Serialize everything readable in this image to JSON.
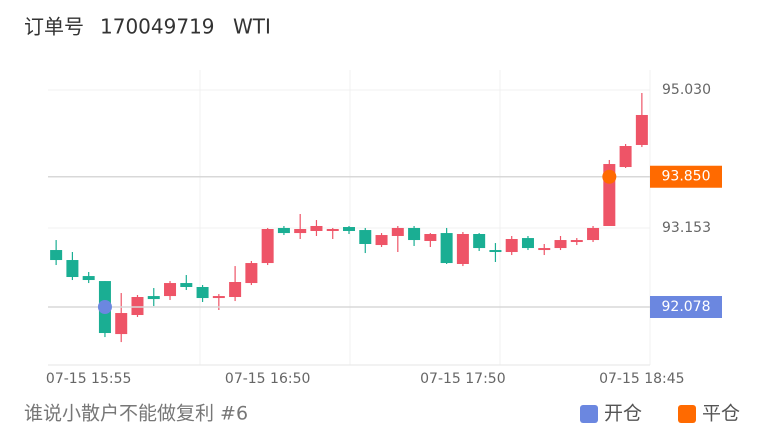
{
  "header": {
    "order_label": "订单号",
    "order_no": "170049719",
    "symbol": "WTI"
  },
  "footer": {
    "text": "谁说小散户不能做复利 #6"
  },
  "chart_data": {
    "type": "candlestick",
    "categories": [
      null,
      null,
      "07-15 15:55",
      null,
      null,
      null,
      null,
      null,
      null,
      null,
      null,
      null,
      null,
      "07-15 16:50",
      null,
      null,
      null,
      null,
      null,
      null,
      null,
      null,
      null,
      null,
      null,
      "07-15 17:50",
      null,
      null,
      null,
      null,
      null,
      null,
      null,
      null,
      null,
      null,
      "07-15 18:45"
    ],
    "open": [
      92.853,
      92.717,
      92.499,
      92.431,
      91.71,
      91.969,
      92.227,
      92.227,
      92.404,
      92.35,
      92.2,
      92.214,
      92.404,
      92.676,
      93.153,
      93.084,
      93.112,
      93.112,
      93.166,
      93.125,
      92.921,
      93.044,
      93.153,
      92.976,
      93.084,
      92.663,
      93.071,
      92.853,
      92.826,
      93.016,
      92.853,
      92.88,
      92.962,
      92.989,
      93.18,
      93.982,
      94.282
    ],
    "high": [
      92.989,
      92.826,
      92.554,
      92.431,
      92.268,
      92.241,
      92.336,
      92.431,
      92.513,
      92.377,
      92.254,
      92.635,
      92.704,
      93.153,
      93.18,
      93.343,
      93.261,
      93.153,
      93.18,
      93.153,
      93.084,
      93.18,
      93.18,
      93.084,
      93.153,
      93.098,
      93.084,
      92.948,
      93.044,
      93.044,
      92.935,
      93.044,
      93.016,
      93.18,
      94.078,
      94.295,
      94.989
    ],
    "low": [
      92.649,
      92.445,
      92.404,
      91.669,
      91.601,
      91.942,
      92.091,
      92.173,
      92.309,
      92.146,
      92.037,
      92.159,
      92.377,
      92.649,
      93.057,
      93.003,
      93.044,
      93.003,
      93.071,
      92.812,
      92.894,
      92.826,
      92.908,
      92.894,
      92.663,
      92.635,
      92.84,
      92.69,
      92.785,
      92.853,
      92.785,
      92.853,
      92.921,
      92.962,
      93.18,
      93.969,
      94.254
    ],
    "close": [
      92.717,
      92.486,
      92.445,
      91.724,
      91.996,
      92.214,
      92.186,
      92.404,
      92.35,
      92.2,
      92.227,
      92.418,
      92.676,
      93.139,
      93.084,
      93.139,
      93.18,
      93.139,
      93.112,
      92.935,
      93.057,
      93.153,
      92.989,
      93.071,
      92.676,
      93.071,
      92.88,
      92.826,
      93.003,
      92.88,
      92.88,
      92.989,
      92.989,
      93.153,
      94.023,
      94.268,
      94.69
    ],
    "up_color": "#ee5467",
    "down_color": "#1aae93",
    "markers": [
      {
        "name": "开仓",
        "color": "#6b87e0",
        "values": [
          null,
          null,
          null,
          92.078,
          null,
          null,
          null,
          null,
          null,
          null,
          null,
          null,
          null,
          null,
          null,
          null,
          null,
          null,
          null,
          null,
          null,
          null,
          null,
          null,
          null,
          null,
          null,
          null,
          null,
          null,
          null,
          null,
          null,
          null,
          null,
          null,
          null
        ]
      },
      {
        "name": "平仓",
        "color": "#ff6a00",
        "values": [
          null,
          null,
          null,
          null,
          null,
          null,
          null,
          null,
          null,
          null,
          null,
          null,
          null,
          null,
          null,
          null,
          null,
          null,
          null,
          null,
          null,
          null,
          null,
          null,
          null,
          null,
          null,
          null,
          null,
          null,
          null,
          null,
          null,
          null,
          93.85,
          null,
          null
        ],
        "value_labels": [
          null,
          null,
          null,
          null,
          null,
          null,
          null,
          null,
          null,
          null,
          null,
          null,
          null,
          null,
          null,
          null,
          null,
          null,
          null,
          null,
          null,
          null,
          null,
          null,
          null,
          null,
          null,
          null,
          null,
          null,
          null,
          null,
          null,
          null,
          "93.850",
          null,
          null
        ]
      }
    ],
    "ylim": [
      91.289,
      95.302
    ],
    "yticks": [
      {
        "value": 95.03,
        "label": "95.030"
      },
      93.153
    ],
    "grid": true
  }
}
